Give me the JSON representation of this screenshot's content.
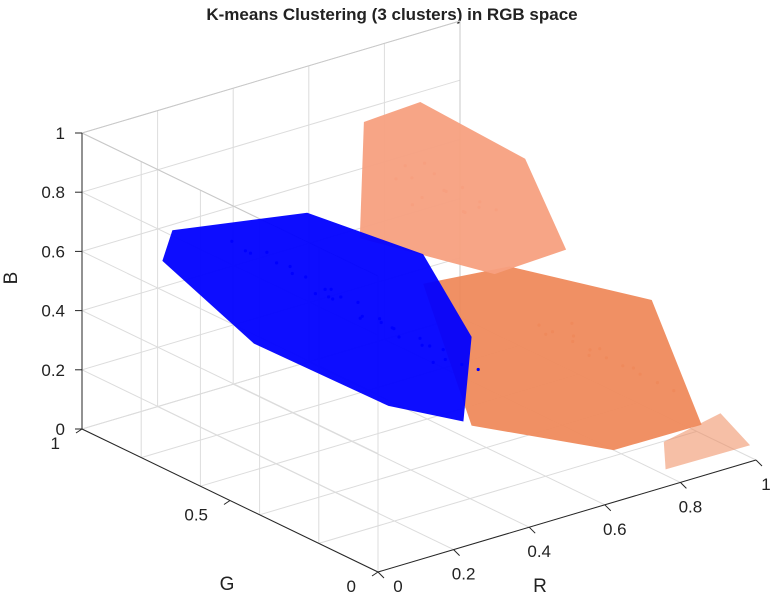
{
  "chart_data": {
    "type": "scatter3d",
    "title": "K-means Clustering (3 clusters) in RGB space",
    "xlabel": "R",
    "ylabel": "G",
    "zlabel": "B",
    "xlim": [
      0,
      1
    ],
    "ylim": [
      0,
      1
    ],
    "zlim": [
      0,
      1
    ],
    "x_ticks": [
      "0.2",
      "0.4",
      "0.6",
      "0.8",
      "1"
    ],
    "y_ticks": [
      "0",
      "0.5",
      "1"
    ],
    "z_ticks": [
      "0",
      "0.2",
      "0.4",
      "0.6",
      "0.8",
      "1"
    ],
    "grid": true,
    "series": [
      {
        "color": "#0000ff",
        "center": {
          "R": 0.35,
          "G": 0.5,
          "B": 0.5
        },
        "points": [
          [
            0.3,
            0.55,
            0.55
          ],
          [
            0.35,
            0.6,
            0.5
          ],
          [
            0.4,
            0.5,
            0.45
          ],
          [
            0.28,
            0.7,
            0.6
          ],
          [
            0.45,
            0.4,
            0.4
          ],
          [
            0.32,
            0.62,
            0.52
          ],
          [
            0.38,
            0.48,
            0.48
          ],
          [
            0.42,
            0.35,
            0.38
          ],
          [
            0.25,
            0.75,
            0.62
          ],
          [
            0.5,
            0.3,
            0.35
          ],
          [
            0.33,
            0.58,
            0.55
          ],
          [
            0.36,
            0.52,
            0.47
          ],
          [
            0.29,
            0.66,
            0.58
          ],
          [
            0.44,
            0.42,
            0.42
          ],
          [
            0.31,
            0.64,
            0.57
          ],
          [
            0.39,
            0.45,
            0.46
          ],
          [
            0.27,
            0.72,
            0.63
          ],
          [
            0.47,
            0.38,
            0.39
          ],
          [
            0.34,
            0.56,
            0.53
          ],
          [
            0.41,
            0.47,
            0.44
          ],
          [
            0.26,
            0.78,
            0.61
          ],
          [
            0.48,
            0.33,
            0.36
          ],
          [
            0.37,
            0.54,
            0.51
          ],
          [
            0.3,
            0.68,
            0.59
          ],
          [
            0.43,
            0.4,
            0.41
          ],
          [
            0.35,
            0.5,
            0.49
          ],
          [
            0.24,
            0.8,
            0.64
          ],
          [
            0.46,
            0.36,
            0.37
          ],
          [
            0.33,
            0.6,
            0.54
          ],
          [
            0.4,
            0.44,
            0.43
          ]
        ]
      },
      {
        "color": "#f7a080",
        "center": {
          "R": 0.65,
          "G": 0.6,
          "B": 0.7
        },
        "points": [
          [
            0.6,
            0.65,
            0.7
          ],
          [
            0.65,
            0.6,
            0.75
          ],
          [
            0.7,
            0.55,
            0.72
          ],
          [
            0.62,
            0.7,
            0.8
          ],
          [
            0.68,
            0.58,
            0.68
          ],
          [
            0.58,
            0.68,
            0.78
          ],
          [
            0.66,
            0.62,
            0.74
          ],
          [
            0.72,
            0.52,
            0.7
          ],
          [
            0.64,
            0.66,
            0.82
          ],
          [
            0.7,
            0.6,
            0.66
          ],
          [
            0.61,
            0.63,
            0.73
          ],
          [
            0.67,
            0.57,
            0.77
          ],
          [
            0.63,
            0.69,
            0.76
          ],
          [
            0.69,
            0.54,
            0.71
          ],
          [
            0.65,
            0.64,
            0.79
          ]
        ]
      },
      {
        "color": "#ef8a5c",
        "center": {
          "R": 0.75,
          "G": 0.3,
          "B": 0.35
        },
        "points": [
          [
            0.75,
            0.3,
            0.35
          ],
          [
            0.8,
            0.25,
            0.3
          ],
          [
            0.7,
            0.35,
            0.4
          ],
          [
            0.85,
            0.2,
            0.25
          ],
          [
            0.78,
            0.28,
            0.32
          ],
          [
            0.72,
            0.33,
            0.38
          ],
          [
            0.82,
            0.22,
            0.28
          ],
          [
            0.76,
            0.31,
            0.36
          ],
          [
            0.88,
            0.18,
            0.22
          ],
          [
            0.74,
            0.29,
            0.42
          ],
          [
            0.9,
            0.15,
            0.2
          ],
          [
            0.79,
            0.26,
            0.33
          ],
          [
            0.71,
            0.34,
            0.37
          ],
          [
            0.84,
            0.21,
            0.27
          ],
          [
            0.77,
            0.27,
            0.31
          ]
        ]
      }
    ]
  }
}
